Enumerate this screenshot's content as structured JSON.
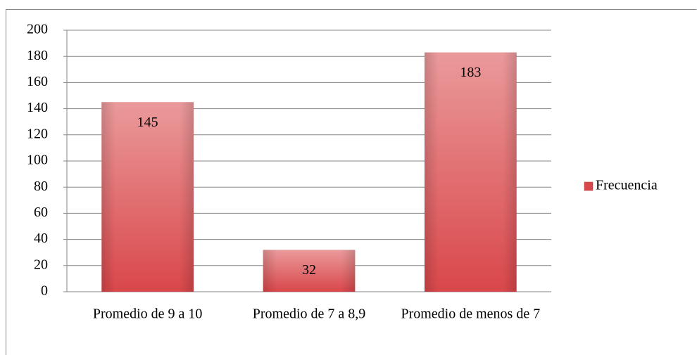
{
  "chart_data": {
    "type": "bar",
    "categories": [
      "Promedio de 9 a 10",
      "Promedio de 7 a 8,9",
      "Promedio de menos de 7"
    ],
    "series": [
      {
        "name": "Frecuencia",
        "color": "#d9474a",
        "values": [
          145,
          32,
          183
        ]
      }
    ],
    "ylim": [
      0,
      200
    ],
    "yticks": [
      0,
      20,
      40,
      60,
      80,
      100,
      120,
      140,
      160,
      180,
      200
    ],
    "grid": true,
    "legend": "right"
  }
}
